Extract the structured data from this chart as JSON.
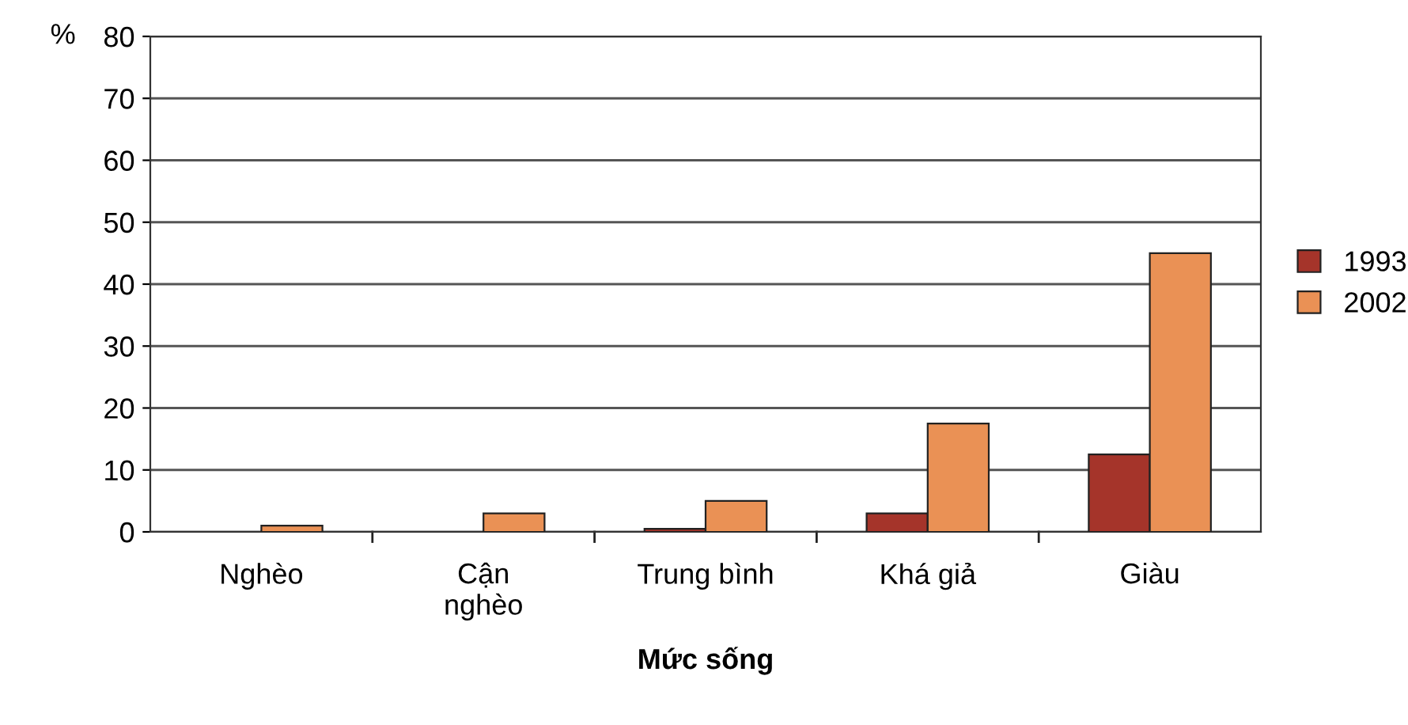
{
  "chart_data": {
    "type": "bar",
    "ylabel": "%",
    "xlabel": "Mức sống",
    "categories": [
      "Nghèo",
      "Cận\nnghèo",
      "Trung bình",
      "Khá giả",
      "Giàu"
    ],
    "series": [
      {
        "name": "1993",
        "color": "#a5342a",
        "values": [
          null,
          null,
          0.5,
          3,
          12.5
        ]
      },
      {
        "name": "2002",
        "color": "#ea9155",
        "values": [
          1,
          3,
          5,
          17.5,
          45
        ]
      }
    ],
    "ylim": [
      0,
      80
    ],
    "yticks": [
      0,
      10,
      20,
      30,
      40,
      50,
      60,
      70,
      80
    ],
    "grid": "y",
    "legend": "right"
  }
}
